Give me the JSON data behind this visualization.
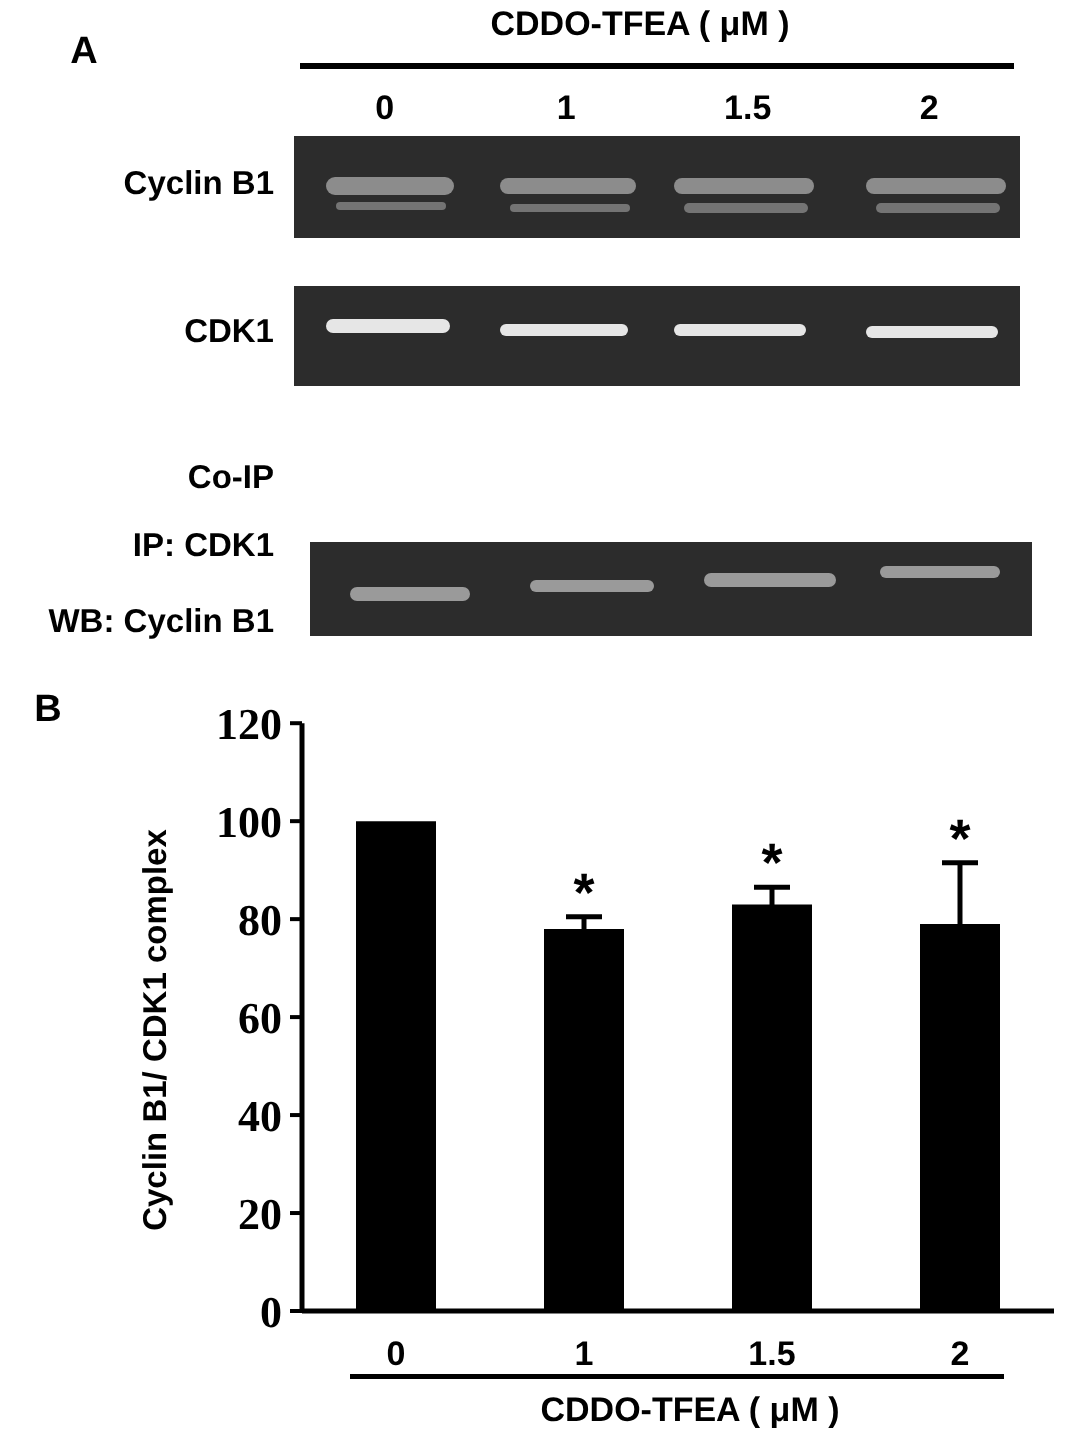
{
  "chart_data": {
    "type": "bar",
    "xlabel": "CDDO-TFEA ( μM )",
    "ylabel": "Cyclin B1/ CDK1 complex",
    "categories": [
      "0",
      "1",
      "1.5",
      "2"
    ],
    "values": [
      100,
      78,
      83,
      79
    ],
    "errors": [
      null,
      2.5,
      3.5,
      12.5
    ],
    "color": "#000000",
    "ylim": [
      0,
      120
    ],
    "yticks": [
      0,
      20,
      40,
      60,
      80,
      100,
      120
    ],
    "annotations": [
      "A",
      "Cyclin B1",
      "CDK1",
      "Co-IP",
      "IP: CDK1",
      "WB: Cyclin B1",
      "B",
      {
        "text": "*",
        "x": "1",
        "y": 80.5
      },
      {
        "text": "*",
        "x": "1.5",
        "y": 86.5
      },
      {
        "text": "*",
        "x": "2",
        "y": 91.5
      }
    ]
  }
}
